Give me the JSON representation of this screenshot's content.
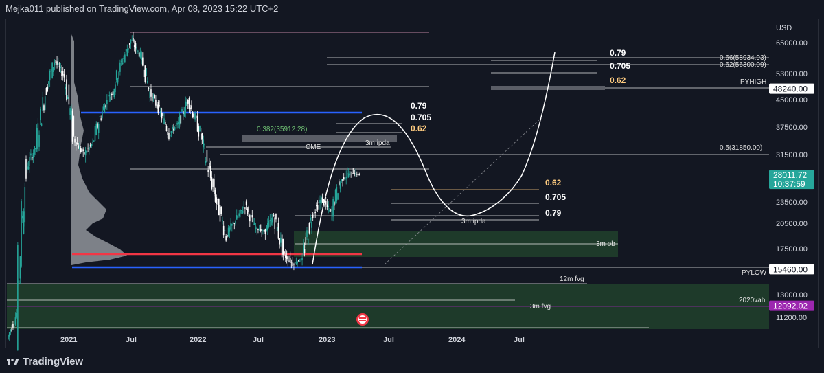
{
  "header": {
    "text": "Mejka011 published on TradingView.com, Apr 08, 2023 15:22 UTC+2"
  },
  "footer": {
    "brand": "TradingView"
  },
  "chart_data": {
    "type": "line",
    "title": "",
    "currency": "USD",
    "x_ticks": [
      "2021",
      "Jul",
      "2022",
      "Jul",
      "2023",
      "Jul",
      "2024",
      "Jul"
    ],
    "y_ticks": [
      "65000.00",
      "53000.00",
      "45000.00",
      "37500.00",
      "31500.00",
      "23500.00",
      "20500.00",
      "17500.00",
      "13000.00",
      "11200.00"
    ],
    "price_tags": [
      {
        "label": "48240.00",
        "value": 48240,
        "bg": "#ffffff",
        "fg": "#131722"
      },
      {
        "label": "28011.72",
        "sub": "10:37:59",
        "value": 28011.72,
        "bg": "#26a69a",
        "fg": "#ffffff"
      },
      {
        "label": "15460.00",
        "value": 15460,
        "bg": "#ffffff",
        "fg": "#131722"
      },
      {
        "label": "12092.02",
        "value": 12092.02,
        "bg": "#9c27b0",
        "fg": "#ffffff"
      }
    ],
    "series": [
      {
        "values": [
          9500,
          11500,
          29000,
          33000,
          47000,
          58000,
          52000,
          35000,
          31500,
          34000,
          42000,
          47000,
          57000,
          66000,
          60000,
          47000,
          42000,
          36000,
          38500,
          45000,
          38000,
          30000,
          23500,
          19000,
          21000,
          23000,
          20000,
          19500,
          21500,
          17000,
          16000,
          16500,
          21500,
          24000,
          22000,
          27000,
          28500,
          28000
        ]
      }
    ],
    "labels": {
      "left_fib_79": "0.79",
      "left_fib_705": "0.705",
      "left_fib_62": "0.62",
      "left_fib_382": "0.382(35912.28)",
      "cme": "CME",
      "ipda_top": "3m ipda",
      "mid_fib_62": "0.62",
      "mid_fib_705": "0.705",
      "mid_fib_79": "0.79",
      "ipda_bottom": "3m ipda",
      "ob": "3m ob",
      "pylow": "PYLOW",
      "fvg12": "12m fvg",
      "vah2020": "2020vah",
      "fvg3": "3m fvg",
      "right_fib_79": "0.79",
      "right_fib_705": "0.705",
      "right_fib_62": "0.62",
      "fib_066": "0.66(58934.93)",
      "fib_062": "0.62(56300.09)",
      "pyhigh": "PYHIGH",
      "fib_05": "0.5(31850.00)"
    },
    "colors": {
      "background": "#131722",
      "candle_up": "#26a69a",
      "candle_down": "#ffffff",
      "blue_level": "#2962ff",
      "red_level": "#f23645",
      "green_zone": "#1e3a2a",
      "fib_orange": "#ffcc80",
      "fib_green": "#4caf50",
      "purple_level": "#9c27b0"
    }
  }
}
